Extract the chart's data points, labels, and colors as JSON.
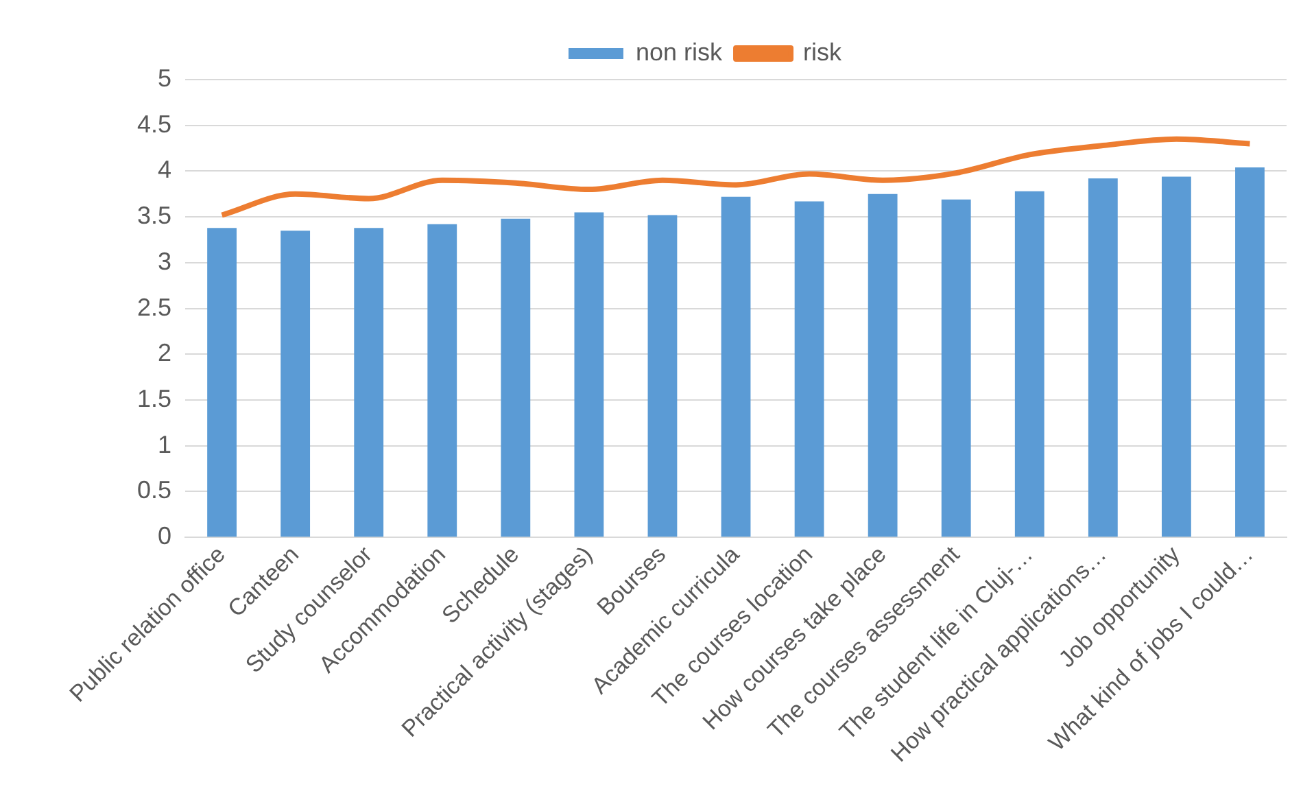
{
  "chart_data": {
    "type": "bar",
    "categories": [
      "Public relation office",
      "Canteen",
      "Study counselor",
      "Accommodation",
      "Schedule",
      "Practical activity (stages)",
      "Bourses",
      "Academic curricula",
      "The courses location",
      "How courses take place",
      "The courses assessment",
      "The student life in Cluj-…",
      "How practical applications…",
      "Job opportunity",
      "What kind of jobs I could…"
    ],
    "series": [
      {
        "name": "non risk",
        "color": "#5b9bd5",
        "values": [
          3.38,
          3.35,
          3.38,
          3.42,
          3.48,
          3.55,
          3.52,
          3.72,
          3.67,
          3.75,
          3.69,
          3.78,
          3.92,
          3.94,
          4.04
        ]
      },
      {
        "name": "risk",
        "type": "line",
        "color": "#ed7d31",
        "values": [
          3.52,
          3.75,
          3.7,
          3.9,
          3.87,
          3.8,
          3.9,
          3.85,
          3.97,
          3.9,
          3.98,
          4.18,
          4.28,
          4.35,
          4.3
        ]
      }
    ],
    "ylim": [
      0,
      5
    ],
    "yticks": [
      0,
      0.5,
      1,
      1.5,
      2,
      2.5,
      3,
      3.5,
      4,
      4.5,
      5
    ],
    "grid": "y",
    "legend": "top",
    "marker": "none"
  }
}
